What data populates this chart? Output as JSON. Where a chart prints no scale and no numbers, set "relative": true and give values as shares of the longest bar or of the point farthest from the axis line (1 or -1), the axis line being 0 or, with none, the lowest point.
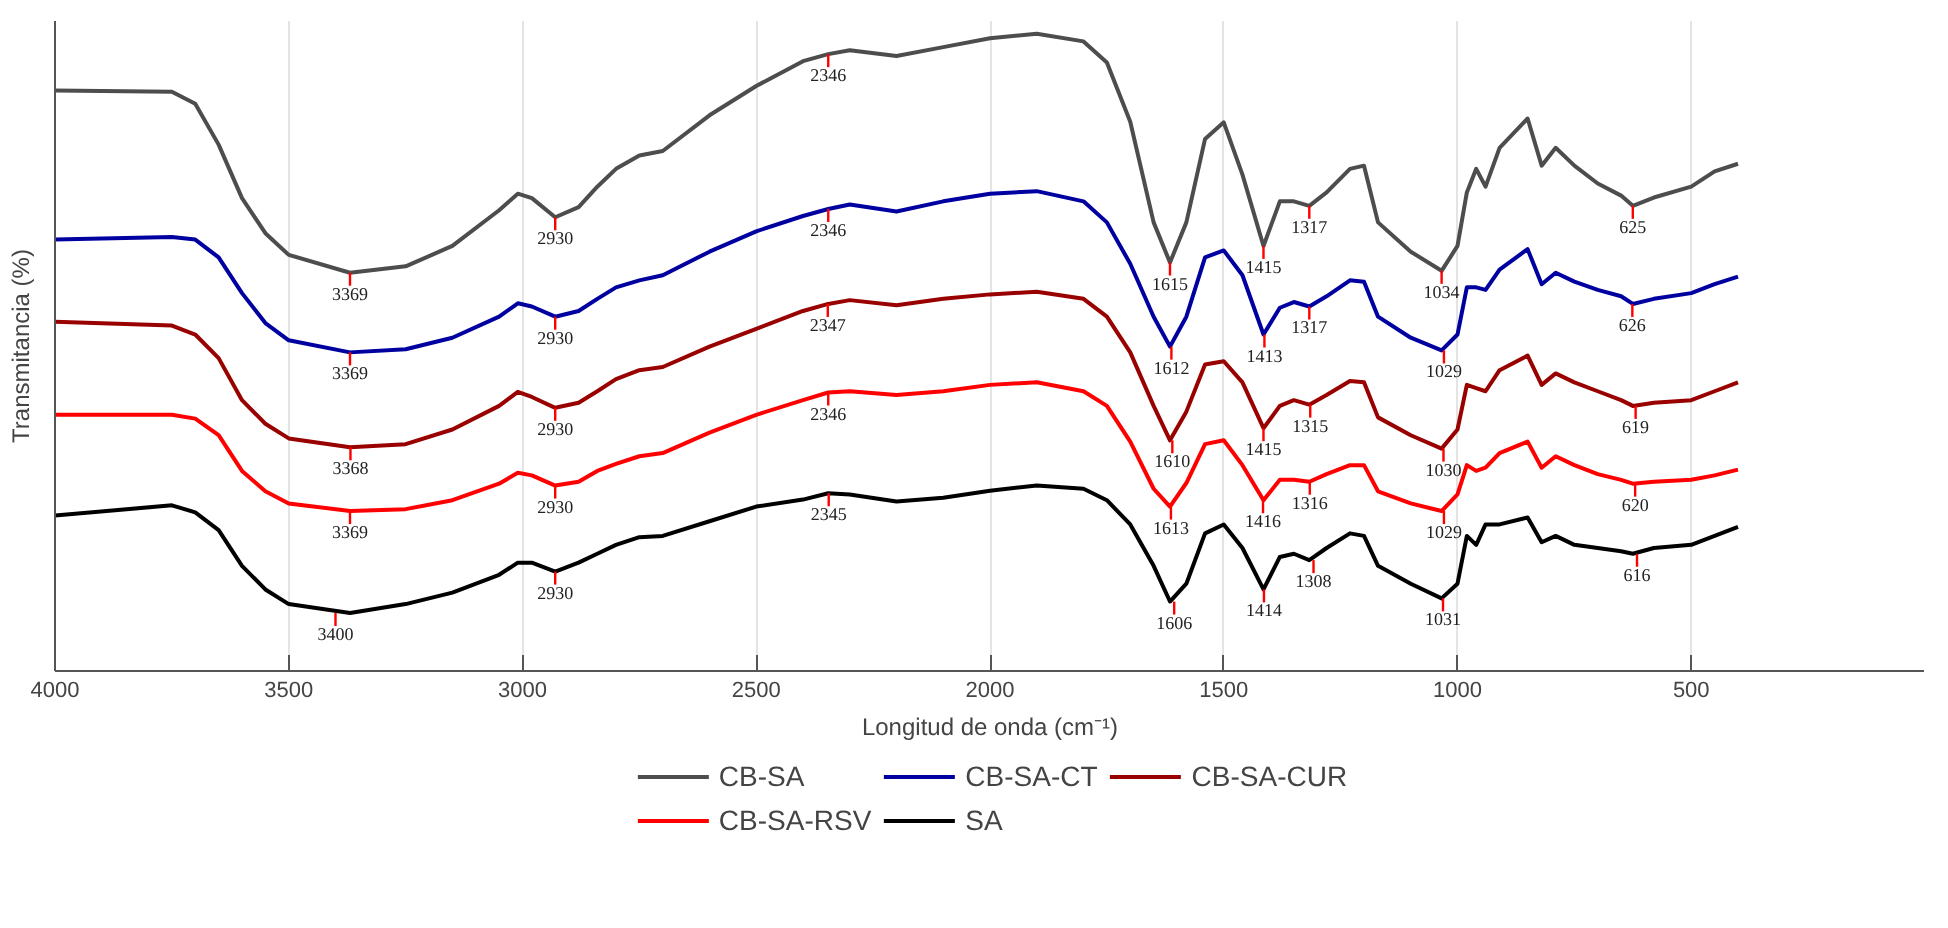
{
  "chart_data": {
    "type": "line",
    "relative": true,
    "xlabel": "Longitud de onda (cm⁻¹)",
    "ylabel": "Transmitancia (%)",
    "xlim": [
      4000,
      0
    ],
    "xticks": [
      4000,
      3500,
      3000,
      2500,
      2000,
      1500,
      1000,
      500
    ],
    "grid": "x",
    "legend": "bottom",
    "x": [
      4000,
      3750,
      3700,
      3650,
      3600,
      3550,
      3500,
      3369,
      3250,
      3150,
      3050,
      3010,
      2980,
      2930,
      2880,
      2840,
      2800,
      2750,
      2700,
      2600,
      2500,
      2400,
      2346,
      2300,
      2200,
      2100,
      2000,
      1900,
      1800,
      1750,
      1700,
      1650,
      1615,
      1580,
      1540,
      1500,
      1460,
      1415,
      1380,
      1350,
      1317,
      1280,
      1230,
      1200,
      1170,
      1100,
      1034,
      1000,
      980,
      960,
      940,
      910,
      850,
      820,
      790,
      750,
      700,
      650,
      625,
      580,
      500,
      450,
      400
    ],
    "series": [
      {
        "name": "CB-SA",
        "color": "#4d4d4d",
        "values": [
          0.911,
          0.909,
          0.89,
          0.826,
          0.742,
          0.687,
          0.653,
          0.625,
          0.635,
          0.667,
          0.723,
          0.749,
          0.742,
          0.712,
          0.728,
          0.76,
          0.788,
          0.809,
          0.816,
          0.872,
          0.918,
          0.957,
          0.968,
          0.974,
          0.965,
          0.979,
          0.993,
          1.0,
          0.988,
          0.955,
          0.862,
          0.704,
          0.641,
          0.704,
          0.835,
          0.861,
          0.779,
          0.667,
          0.737,
          0.737,
          0.73,
          0.751,
          0.788,
          0.793,
          0.704,
          0.658,
          0.628,
          0.667,
          0.751,
          0.788,
          0.76,
          0.821,
          0.867,
          0.793,
          0.821,
          0.793,
          0.765,
          0.746,
          0.73,
          0.743,
          0.76,
          0.784,
          0.796
        ]
      },
      {
        "name": "CB-SA-CT",
        "color": "#0000a0",
        "values": [
          0.677,
          0.681,
          0.677,
          0.649,
          0.593,
          0.546,
          0.519,
          0.5,
          0.505,
          0.523,
          0.556,
          0.577,
          0.572,
          0.556,
          0.565,
          0.584,
          0.602,
          0.613,
          0.621,
          0.658,
          0.69,
          0.714,
          0.725,
          0.732,
          0.721,
          0.737,
          0.749,
          0.753,
          0.737,
          0.704,
          0.639,
          0.556,
          0.509,
          0.556,
          0.649,
          0.66,
          0.621,
          0.528,
          0.57,
          0.579,
          0.572,
          0.588,
          0.613,
          0.611,
          0.556,
          0.523,
          0.503,
          0.528,
          0.602,
          0.602,
          0.598,
          0.63,
          0.662,
          0.607,
          0.625,
          0.611,
          0.598,
          0.588,
          0.576,
          0.584,
          0.593,
          0.607,
          0.619
        ]
      },
      {
        "name": "CB-SA-CUR",
        "color": "#990000",
        "values": [
          0.548,
          0.542,
          0.528,
          0.491,
          0.425,
          0.388,
          0.365,
          0.351,
          0.356,
          0.379,
          0.416,
          0.438,
          0.43,
          0.413,
          0.421,
          0.439,
          0.458,
          0.472,
          0.477,
          0.509,
          0.537,
          0.565,
          0.576,
          0.582,
          0.574,
          0.584,
          0.591,
          0.595,
          0.584,
          0.556,
          0.5,
          0.416,
          0.362,
          0.407,
          0.481,
          0.486,
          0.453,
          0.381,
          0.416,
          0.425,
          0.418,
          0.433,
          0.455,
          0.453,
          0.398,
          0.37,
          0.349,
          0.379,
          0.449,
          0.444,
          0.439,
          0.472,
          0.495,
          0.449,
          0.467,
          0.453,
          0.439,
          0.425,
          0.416,
          0.421,
          0.425,
          0.439,
          0.453
        ]
      },
      {
        "name": "CB-SA-RSV",
        "color": "#ff0000",
        "values": [
          0.402,
          0.402,
          0.396,
          0.37,
          0.314,
          0.282,
          0.263,
          0.251,
          0.254,
          0.268,
          0.294,
          0.311,
          0.307,
          0.291,
          0.297,
          0.314,
          0.325,
          0.337,
          0.342,
          0.374,
          0.402,
          0.425,
          0.437,
          0.439,
          0.433,
          0.439,
          0.449,
          0.453,
          0.439,
          0.416,
          0.36,
          0.286,
          0.258,
          0.295,
          0.356,
          0.362,
          0.323,
          0.268,
          0.3,
          0.3,
          0.297,
          0.309,
          0.323,
          0.323,
          0.282,
          0.263,
          0.251,
          0.277,
          0.323,
          0.314,
          0.319,
          0.342,
          0.36,
          0.319,
          0.337,
          0.323,
          0.309,
          0.3,
          0.294,
          0.297,
          0.3,
          0.307,
          0.316
        ]
      },
      {
        "name": "SA",
        "color": "#000000",
        "values": [
          0.244,
          0.26,
          0.249,
          0.221,
          0.165,
          0.128,
          0.105,
          0.091,
          0.105,
          0.123,
          0.151,
          0.17,
          0.17,
          0.156,
          0.17,
          0.184,
          0.198,
          0.21,
          0.212,
          0.235,
          0.258,
          0.269,
          0.279,
          0.277,
          0.266,
          0.272,
          0.283,
          0.291,
          0.286,
          0.268,
          0.23,
          0.165,
          0.109,
          0.137,
          0.216,
          0.23,
          0.193,
          0.128,
          0.179,
          0.184,
          0.174,
          0.193,
          0.216,
          0.212,
          0.165,
          0.137,
          0.114,
          0.137,
          0.212,
          0.198,
          0.23,
          0.23,
          0.241,
          0.202,
          0.212,
          0.198,
          0.193,
          0.188,
          0.184,
          0.193,
          0.198,
          0.212,
          0.226
        ]
      }
    ],
    "annotations": [
      {
        "text": "3369",
        "x": 3369,
        "y": 0.625
      },
      {
        "text": "2930",
        "x": 2930,
        "y": 0.712
      },
      {
        "text": "2346",
        "x": 2346,
        "y": 0.968
      },
      {
        "text": "1615",
        "x": 1615,
        "y": 0.641
      },
      {
        "text": "1415",
        "x": 1415,
        "y": 0.667
      },
      {
        "text": "1317",
        "x": 1317,
        "y": 0.73
      },
      {
        "text": "1034",
        "x": 1034,
        "y": 0.628
      },
      {
        "text": "625",
        "x": 625,
        "y": 0.73
      },
      {
        "text": "3369",
        "x": 3369,
        "y": 0.5
      },
      {
        "text": "2930",
        "x": 2930,
        "y": 0.556
      },
      {
        "text": "2346",
        "x": 2346,
        "y": 0.725
      },
      {
        "text": "1612",
        "x": 1612,
        "y": 0.509
      },
      {
        "text": "1413",
        "x": 1413,
        "y": 0.528
      },
      {
        "text": "1317",
        "x": 1317,
        "y": 0.572
      },
      {
        "text": "1029",
        "x": 1029,
        "y": 0.503
      },
      {
        "text": "626",
        "x": 626,
        "y": 0.576
      },
      {
        "text": "3368",
        "x": 3368,
        "y": 0.351
      },
      {
        "text": "2930",
        "x": 2930,
        "y": 0.413
      },
      {
        "text": "2347",
        "x": 2347,
        "y": 0.576
      },
      {
        "text": "1610",
        "x": 1610,
        "y": 0.362
      },
      {
        "text": "1415",
        "x": 1415,
        "y": 0.381
      },
      {
        "text": "1315",
        "x": 1315,
        "y": 0.418
      },
      {
        "text": "1030",
        "x": 1030,
        "y": 0.349
      },
      {
        "text": "619",
        "x": 619,
        "y": 0.416
      },
      {
        "text": "3369",
        "x": 3369,
        "y": 0.251
      },
      {
        "text": "2930",
        "x": 2930,
        "y": 0.291
      },
      {
        "text": "2346",
        "x": 2346,
        "y": 0.437
      },
      {
        "text": "1613",
        "x": 1613,
        "y": 0.258
      },
      {
        "text": "1416",
        "x": 1416,
        "y": 0.268
      },
      {
        "text": "1316",
        "x": 1316,
        "y": 0.297
      },
      {
        "text": "1029",
        "x": 1029,
        "y": 0.251
      },
      {
        "text": "620",
        "x": 620,
        "y": 0.294
      },
      {
        "text": "3400",
        "x": 3400,
        "y": 0.091
      },
      {
        "text": "2930",
        "x": 2930,
        "y": 0.156
      },
      {
        "text": "2345",
        "x": 2345,
        "y": 0.279
      },
      {
        "text": "1606",
        "x": 1606,
        "y": 0.109
      },
      {
        "text": "1414",
        "x": 1414,
        "y": 0.128
      },
      {
        "text": "1308",
        "x": 1308,
        "y": 0.174
      },
      {
        "text": "1031",
        "x": 1031,
        "y": 0.114
      },
      {
        "text": "616",
        "x": 616,
        "y": 0.184
      }
    ]
  }
}
